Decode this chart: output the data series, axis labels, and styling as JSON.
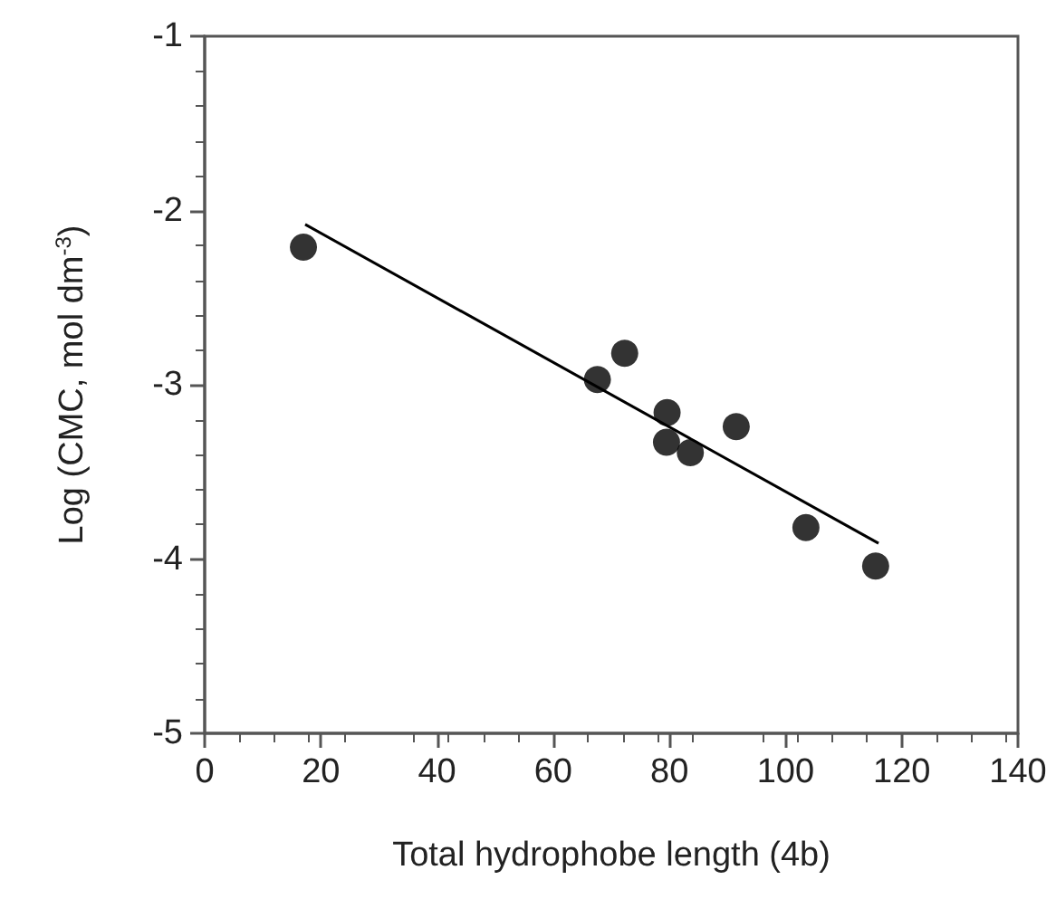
{
  "chart_data": {
    "type": "scatter",
    "xlabel": "Total hydrophobe length (4b)",
    "ylabel": "Log (CMC, mol dm$^{-3}$)",
    "series": [
      {
        "color": "#000000",
        "marker": "circle",
        "x": [
          17,
          67.6,
          72.3,
          79.6,
          79.5,
          83.6,
          91.5,
          103.5,
          115.5
        ],
        "values": [
          -2.21,
          -2.97,
          -2.82,
          -3.16,
          -3.33,
          -3.39,
          -3.24,
          -3.82,
          -4.04
        ]
      },
      {
        "type": "line",
        "color": "#000000",
        "marker": "none",
        "line_style": "solid",
        "x": [
          17.3,
          116
        ],
        "values": [
          -2.08,
          -3.91
        ]
      }
    ],
    "xlim": [
      0,
      140
    ],
    "xticks": [
      0,
      20,
      40,
      60,
      80,
      100,
      120,
      140
    ],
    "ylim": [
      -5,
      -1
    ],
    "yticks": [
      -5,
      -4,
      -3,
      -2,
      -1
    ],
    "grid": false
  }
}
